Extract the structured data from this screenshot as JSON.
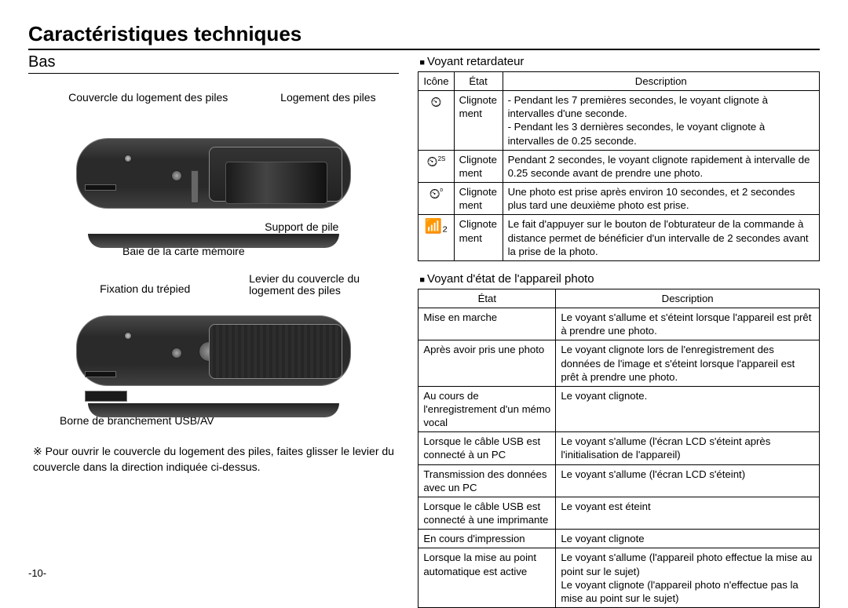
{
  "title": "Caractéristiques techniques",
  "left": {
    "heading": "Bas",
    "labels": {
      "batt_cover": "Couvercle du logement des piles",
      "batt_comp": "Logement des piles",
      "holder": "Support de pile",
      "mem_slot": "Baie de la carte mémoire",
      "tripod": "Fixation du trépied",
      "lever": "Levier du couvercle du logement des piles",
      "usb": "Borne de branchement USB/AV"
    },
    "note": "Pour ouvrir le couvercle du logement des piles, faites glisser le levier du couvercle dans la direction indiquée ci-dessus."
  },
  "right": {
    "sect1": "Voyant retardateur",
    "t1": {
      "head": [
        "Icône",
        "État",
        "Description"
      ],
      "rows": [
        {
          "icon": "⏲",
          "etat": "Clignote ment",
          "desc": "- Pendant les 7 premières secondes, le voyant clignote à intervalles d'une seconde.\n- Pendant les 3 dernières secondes, le voyant clignote à intervalles de 0.25 seconde."
        },
        {
          "icon": "⏲",
          "sup": "2S",
          "etat": "Clignote ment",
          "desc": "Pendant 2 secondes, le voyant clignote rapidement à intervalle de 0.25 seconde avant de prendre une photo."
        },
        {
          "icon": "⏲",
          "sup": "ᴰ",
          "etat": "Clignote ment",
          "desc": "Une photo est prise après environ 10 secondes, et 2 secondes plus tard une deuxième photo est prise."
        },
        {
          "icon": "📶₂",
          "etat": "Clignote ment",
          "desc": "Le fait d'appuyer sur le bouton de l'obturateur de la commande à distance permet de bénéficier d'un intervalle de 2 secondes avant la prise de la photo."
        }
      ]
    },
    "sect2": "Voyant d'état de l'appareil photo",
    "t2": {
      "head": [
        "État",
        "Description"
      ],
      "rows": [
        {
          "etat": "Mise en marche",
          "desc": "Le voyant s'allume et s'éteint lorsque l'appareil est prêt à prendre une photo."
        },
        {
          "etat": "Après avoir pris une photo",
          "desc": "Le voyant clignote lors de l'enregistrement des données de l'image et s'éteint lorsque l'appareil est prêt à prendre une photo."
        },
        {
          "etat": "Au cours de l'enregistrement d'un mémo vocal",
          "desc": "Le voyant clignote."
        },
        {
          "etat": "Lorsque le câble USB est connecté à un PC",
          "desc": "Le voyant s'allume (l'écran LCD s'éteint après l'initialisation de l'appareil)"
        },
        {
          "etat": "Transmission des données avec un PC",
          "desc": "Le voyant s'allume (l'écran LCD s'éteint)"
        },
        {
          "etat": "Lorsque le câble USB est connecté à une imprimante",
          "desc": "Le voyant est éteint"
        },
        {
          "etat": "En cours d'impression",
          "desc": "Le voyant clignote"
        },
        {
          "etat": "Lorsque la mise au point automatique est active",
          "desc": "Le voyant s'allume (l'appareil photo effectue la mise au point sur le sujet)\nLe voyant clignote (l'appareil photo n'effectue pas la mise au point sur le sujet)"
        }
      ]
    }
  },
  "page": "-10-"
}
